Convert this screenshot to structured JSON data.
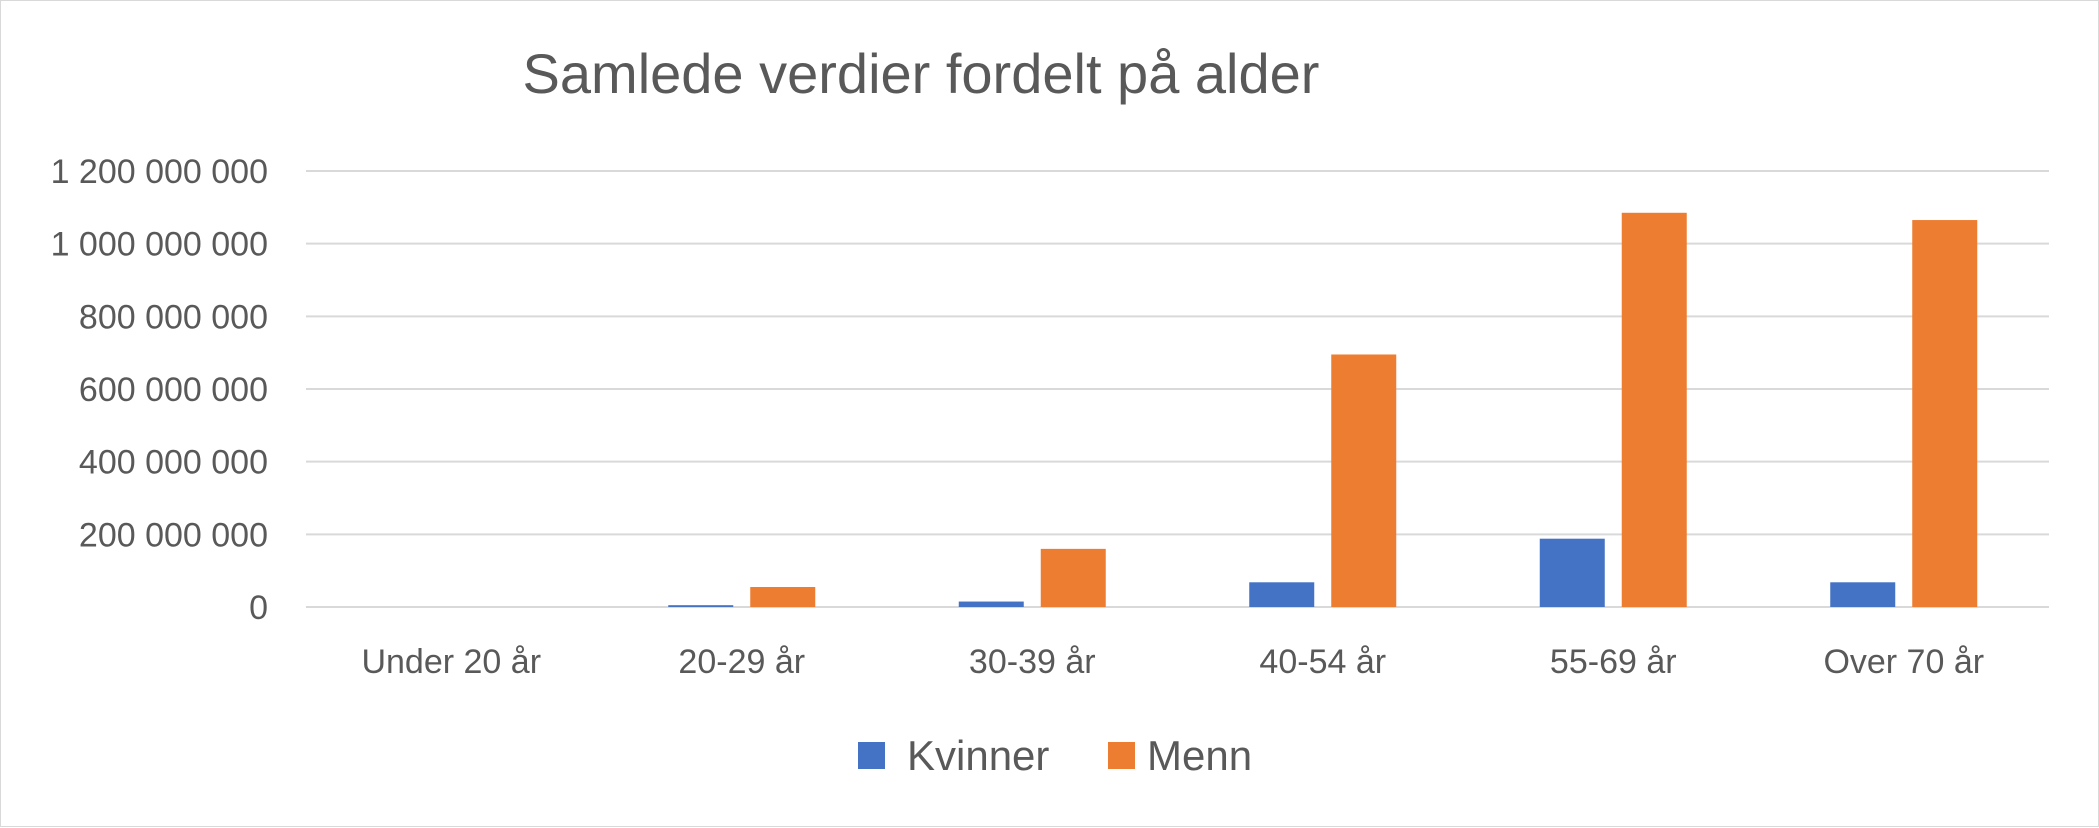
{
  "chart_data": {
    "type": "bar",
    "title": "Samlede verdier fordelt på alder",
    "xlabel": "",
    "ylabel": "",
    "categories": [
      "Under 20 år",
      "20-29 år",
      "30-39 år",
      "40-54 år",
      "55-69 år",
      "Over 70 år"
    ],
    "series": [
      {
        "name": "Kvinner",
        "color": "#4472c4",
        "values": [
          0,
          5000000,
          15000000,
          68000000,
          188000000,
          68000000
        ]
      },
      {
        "name": "Menn",
        "color": "#ed7d31",
        "values": [
          0,
          55000000,
          160000000,
          695000000,
          1085000000,
          1065000000
        ]
      }
    ],
    "ylim": [
      0,
      1200000000
    ],
    "yticks": [
      0,
      200000000,
      400000000,
      600000000,
      800000000,
      1000000000,
      1200000000
    ],
    "ytick_labels": [
      "0",
      "200 000 000",
      "400 000 000",
      "600 000 000",
      "800 000 000",
      "1 000 000 000",
      "1 200 000 000"
    ],
    "grid": true,
    "legend": "bottom"
  }
}
